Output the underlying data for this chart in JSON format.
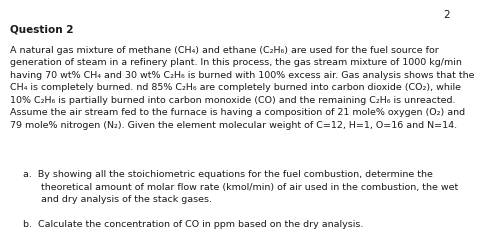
{
  "page_number": "2",
  "title": "Question 2",
  "paragraph": "A natural gas mixture of methane (CH₄) and ethane (C₂H₆) are used for the fuel source for\ngeneration of steam in a refinery plant. In this process, the gas stream mixture of 1000 kg/min\nhaving 70 wt% CH₄ and 30 wt% C₂H₆ is burned with 100% excess air. Gas analysis shows that the\nCH₄ is completely burned. nd 85% C₂H₆ are completely burned into carbon dioxide (CO₂), while\n10% C₂H₆ is partially burned into carbon monoxide (CO) and the remaining C₂H₆ is unreacted.\nAssume the air stream fed to the furnace is having a composition of 21 mole% oxygen (O₂) and\n79 mole% nitrogen (N₂). Given the element molecular weight of C=12, H=1, O=16 and N=14.",
  "item_a": "a.  By showing all the stoichiometric equations for the fuel combustion, determine the\n      theoretical amount of molar flow rate (kmol/min) of air used in the combustion, the wet\n      and dry analysis of the stack gases.",
  "item_b": "b.  Calculate the concentration of CO in ppm based on the dry analysis.",
  "background_color": "#ffffff",
  "text_color": "#1a1a1a",
  "font_size_page_num": 7.5,
  "font_size_title": 7.5,
  "font_size_body": 6.8,
  "title_font_weight": "bold"
}
